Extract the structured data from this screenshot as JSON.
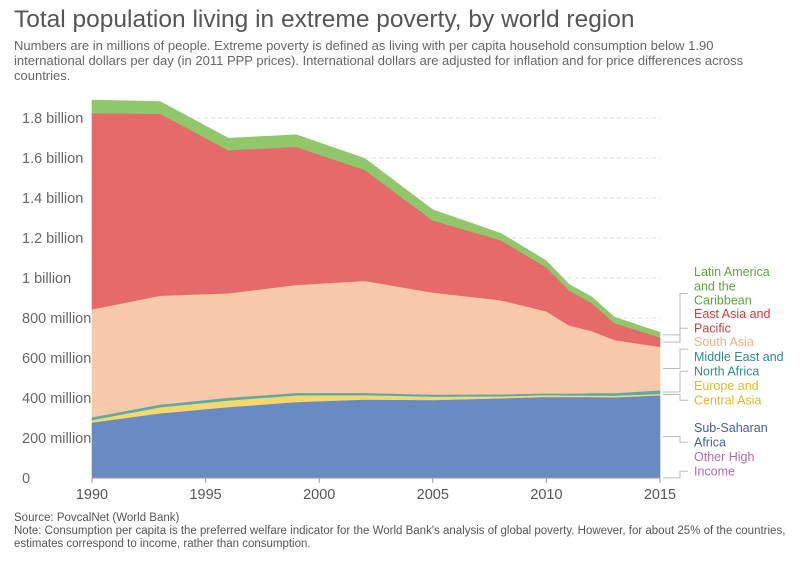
{
  "title": "Total population living in extreme poverty, by world region",
  "subtitle": "Numbers are in millions of people. Extreme poverty is defined as living with per capita household consumption below 1.90 international dollars per day (in 2011 PPP prices). International dollars are adjusted for inflation and for price differences across countries.",
  "source": "Source: PovcalNet (World Bank)",
  "note": "Note: Consumption per capita is the preferred welfare indicator for the World Bank's analysis of global poverty. However, for about 25% of the countries, estimates correspond to income, rather than consumption.",
  "chart_data": {
    "type": "area",
    "stacked": true,
    "x": [
      1990,
      1993,
      1996,
      1999,
      2002,
      2005,
      2008,
      2010,
      2011,
      2012,
      2013,
      2015
    ],
    "xticks": [
      1990,
      1995,
      2000,
      2005,
      2010,
      2015
    ],
    "xlim": [
      1990,
      2015
    ],
    "ylim": [
      0,
      1900000000
    ],
    "yticks": [
      0,
      200000000,
      400000000,
      600000000,
      800000000,
      1000000000,
      1200000000,
      1400000000,
      1600000000,
      1800000000
    ],
    "ytick_labels": [
      "0",
      "200 million",
      "400 million",
      "600 million",
      "800 million",
      "1 billion",
      "1.2 billion",
      "1.4 billion",
      "1.6 billion",
      "1.8 billion"
    ],
    "grid": true,
    "legend_position": "right, labels beside series ends",
    "series": [
      {
        "name": "Other High Income",
        "color": "#b36bb3",
        "values": [
          1000000,
          1000000,
          1000000,
          1000000,
          1000000,
          1000000,
          1000000,
          1000000,
          1000000,
          1000000,
          1000000,
          1000000
        ]
      },
      {
        "name": "Sub-Saharan Africa",
        "color": "#6a8ac4",
        "values": [
          277000000,
          323000000,
          354000000,
          379000000,
          392000000,
          389000000,
          398000000,
          405000000,
          404000000,
          404000000,
          403000000,
          413000000
        ]
      },
      {
        "name": "Europe and Central Asia",
        "color": "#f5d86b",
        "values": [
          12000000,
          30000000,
          33000000,
          34000000,
          22000000,
          17000000,
          10000000,
          9000000,
          8000000,
          8000000,
          8000000,
          7000000
        ]
      },
      {
        "name": "Middle East and North Africa",
        "color": "#5fa8a8",
        "values": [
          14000000,
          14000000,
          14000000,
          12000000,
          11000000,
          11000000,
          10000000,
          9000000,
          10000000,
          12000000,
          13000000,
          18000000
        ]
      },
      {
        "name": "South Asia",
        "color": "#f8c9a8",
        "values": [
          540000000,
          544000000,
          522000000,
          540000000,
          560000000,
          510000000,
          470000000,
          410000000,
          340000000,
          310000000,
          265000000,
          217000000
        ]
      },
      {
        "name": "East Asia and Pacific",
        "color": "#e66a6a",
        "values": [
          980000000,
          910000000,
          715000000,
          690000000,
          555000000,
          360000000,
          300000000,
          220000000,
          175000000,
          140000000,
          85000000,
          47000000
        ]
      },
      {
        "name": "Latin America and the Caribbean",
        "color": "#8fc76a",
        "values": [
          66000000,
          60000000,
          60000000,
          60000000,
          57000000,
          53000000,
          34000000,
          32000000,
          30000000,
          30000000,
          29000000,
          25000000
        ]
      }
    ]
  }
}
